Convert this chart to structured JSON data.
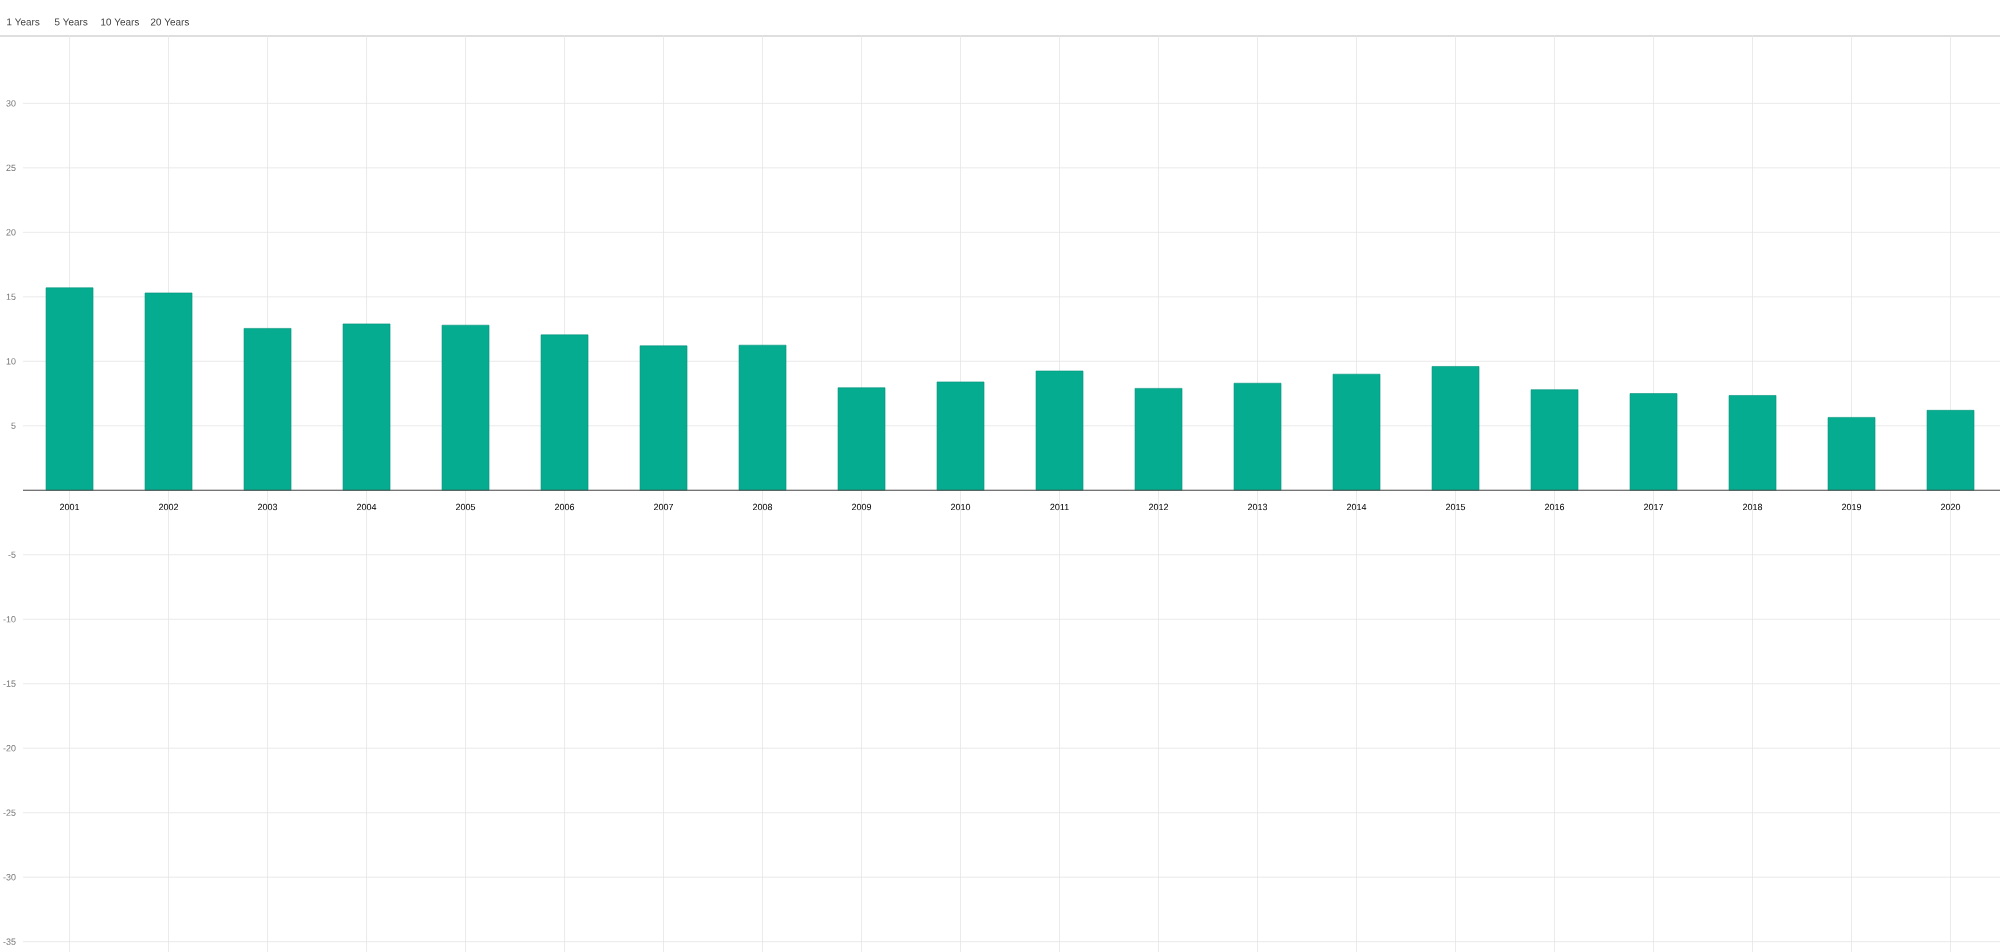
{
  "chart_data": {
    "type": "bar",
    "categories": [
      "2001",
      "2002",
      "2003",
      "2004",
      "2005",
      "2006",
      "2007",
      "2008",
      "2009",
      "2010",
      "2011",
      "2012",
      "2013",
      "2014",
      "2015",
      "2016",
      "2017",
      "2018",
      "2019",
      "2020"
    ],
    "values": [
      15.7,
      15.3,
      12.55,
      12.9,
      12.8,
      12.05,
      11.2,
      11.25,
      7.95,
      8.4,
      9.25,
      7.9,
      8.3,
      9.0,
      9.6,
      7.8,
      7.5,
      7.35,
      5.65,
      6.2
    ],
    "color": "#05ac8f",
    "ylim": [
      -35.8,
      35.3
    ],
    "yticks": [
      -35,
      -30,
      -25,
      -20,
      -15,
      -10,
      -5,
      {
        "value": 0,
        "label": null
      },
      5,
      10,
      15,
      20,
      25,
      30
    ],
    "grid": true,
    "annotations": [
      "1 Years",
      "5 Years",
      "10 Years",
      "20 Years"
    ]
  }
}
